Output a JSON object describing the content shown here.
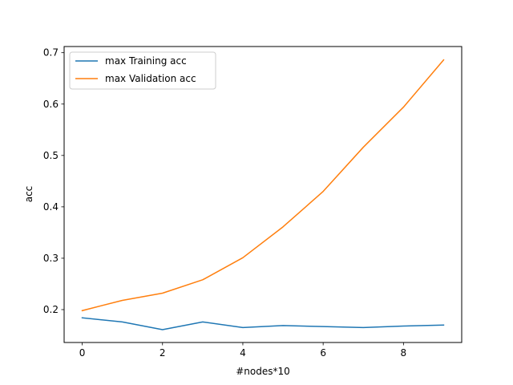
{
  "chart_data": {
    "type": "line",
    "title": "",
    "xlabel": "#nodes*10",
    "ylabel": "acc",
    "x": [
      0,
      1,
      2,
      3,
      4,
      5,
      6,
      7,
      8,
      9
    ],
    "xlim": [
      -0.45,
      9.45
    ],
    "ylim": [
      0.136,
      0.712
    ],
    "xticks": [
      0,
      2,
      4,
      6,
      8
    ],
    "yticks": [
      0.2,
      0.3,
      0.4,
      0.5,
      0.6,
      0.7
    ],
    "xtick_labels": [
      "0",
      "2",
      "4",
      "6",
      "8"
    ],
    "ytick_labels": [
      "0.2",
      "0.3",
      "0.4",
      "0.5",
      "0.6",
      "0.7"
    ],
    "grid": false,
    "legend_position": "top-left",
    "series": [
      {
        "name": "max Training acc",
        "color": "#1f77b4",
        "values": [
          0.184,
          0.176,
          0.161,
          0.176,
          0.165,
          0.169,
          0.167,
          0.165,
          0.168,
          0.17
        ]
      },
      {
        "name": "max Validation acc",
        "color": "#ff7f0e",
        "values": [
          0.198,
          0.218,
          0.232,
          0.258,
          0.301,
          0.361,
          0.43,
          0.516,
          0.594,
          0.686
        ]
      }
    ]
  }
}
